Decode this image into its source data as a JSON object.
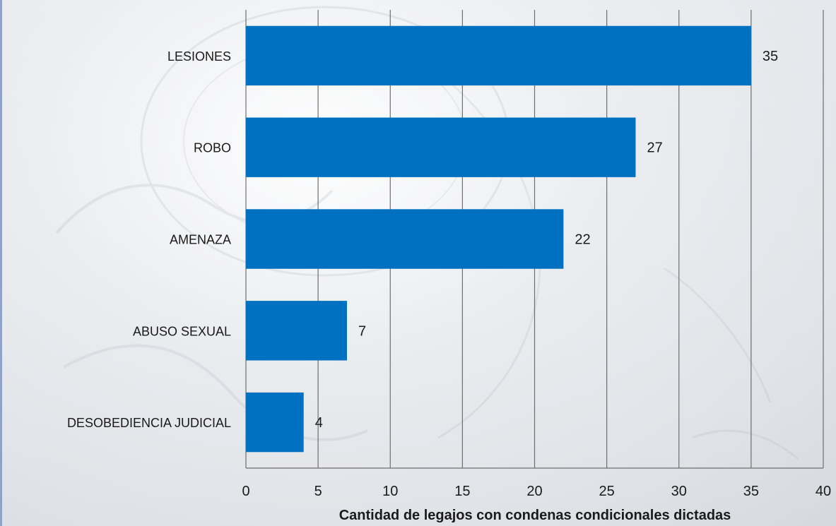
{
  "chart_data": {
    "type": "bar",
    "orientation": "horizontal",
    "categories": [
      "LESIONES",
      "ROBO",
      "AMENAZA",
      "ABUSO SEXUAL",
      "DESOBEDIENCIA JUDICIAL"
    ],
    "values": [
      35,
      27,
      22,
      7,
      4
    ],
    "data_labels": [
      "35",
      "27",
      "22",
      "7",
      "4"
    ],
    "xlabel": "Cantidad de legajos con condenas condicionales dictadas",
    "ylabel": "",
    "xlim": [
      0,
      40
    ],
    "xticks": [
      0,
      5,
      10,
      15,
      20,
      25,
      30,
      35,
      40
    ],
    "grid": "vertical",
    "legend": "none",
    "bar_color": "#0070c0"
  }
}
